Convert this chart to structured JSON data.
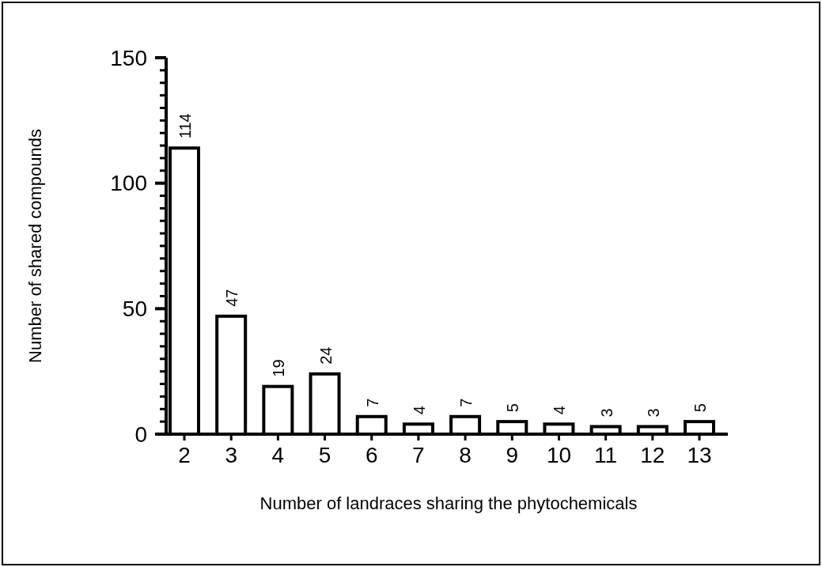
{
  "chart_data": {
    "type": "bar",
    "xlabel": "Number of landraces sharing the phytochemicals",
    "ylabel": "Number of shared compounds",
    "categories": [
      "2",
      "3",
      "4",
      "5",
      "6",
      "7",
      "8",
      "9",
      "10",
      "11",
      "12",
      "13"
    ],
    "values": [
      114,
      47,
      19,
      24,
      7,
      4,
      7,
      5,
      4,
      3,
      3,
      5
    ],
    "color": "#ffffff",
    "data_labels": true,
    "ylim": [
      0,
      150
    ],
    "yticks": [
      0,
      {
        "value": 5,
        "label": null
      },
      {
        "value": 10,
        "label": null
      },
      {
        "value": 15,
        "label": null
      },
      {
        "value": 20,
        "label": null
      },
      {
        "value": 25,
        "label": null
      },
      {
        "value": 30,
        "label": null
      },
      {
        "value": 35,
        "label": null
      },
      {
        "value": 40,
        "label": null
      },
      {
        "value": 45,
        "label": null
      },
      50,
      {
        "value": 55,
        "label": null
      },
      {
        "value": 60,
        "label": null
      },
      {
        "value": 65,
        "label": null
      },
      {
        "value": 70,
        "label": null
      },
      {
        "value": 75,
        "label": null
      },
      {
        "value": 80,
        "label": null
      },
      {
        "value": 85,
        "label": null
      },
      {
        "value": 90,
        "label": null
      },
      {
        "value": 95,
        "label": null
      },
      100,
      {
        "value": 105,
        "label": null
      },
      {
        "value": 110,
        "label": null
      },
      {
        "value": 115,
        "label": null
      },
      {
        "value": 120,
        "label": null
      },
      {
        "value": 125,
        "label": null
      },
      {
        "value": 130,
        "label": null
      },
      {
        "value": 135,
        "label": null
      },
      {
        "value": 140,
        "label": null
      },
      {
        "value": 145,
        "label": null
      },
      150
    ],
    "tick_labels": true
  }
}
